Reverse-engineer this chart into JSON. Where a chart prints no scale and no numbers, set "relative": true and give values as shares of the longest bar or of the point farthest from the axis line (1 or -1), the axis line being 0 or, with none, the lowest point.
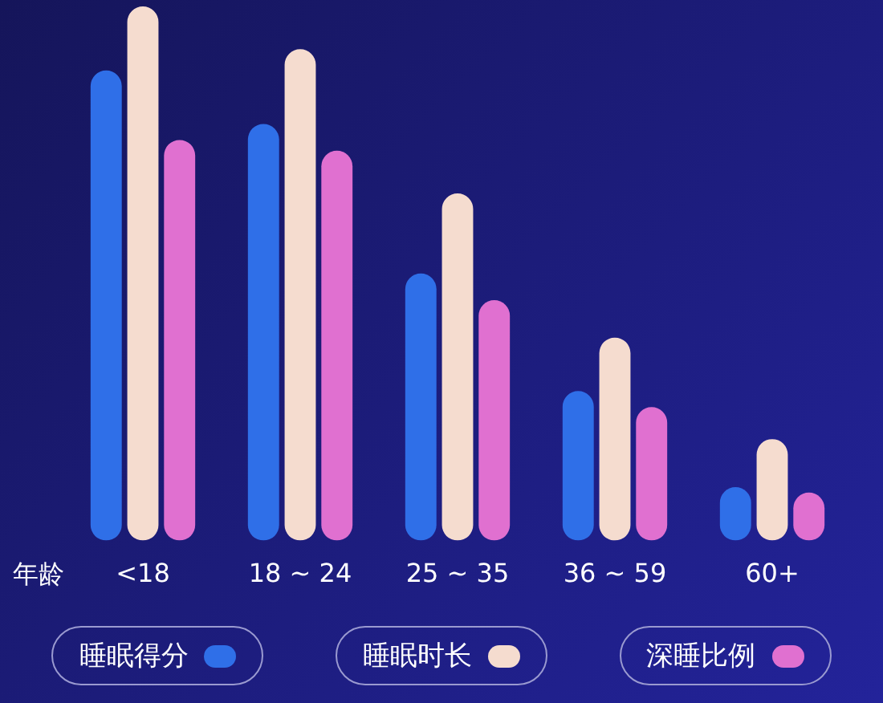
{
  "chart_data": {
    "type": "bar",
    "xlabel": "年龄",
    "categories": [
      "<18",
      "18 ~ 24",
      "25 ~ 35",
      "36 ~ 59",
      "60+"
    ],
    "relative": true,
    "legend": "bottom",
    "grid": false,
    "series": [
      {
        "name": "睡眠得分",
        "color": "#2f6fe8",
        "values": [
          0.88,
          0.78,
          0.5,
          0.28,
          0.1
        ]
      },
      {
        "name": "睡眠时长",
        "color": "#f5dccf",
        "values": [
          1,
          0.92,
          0.65,
          0.38,
          0.19
        ]
      },
      {
        "name": "深睡比例",
        "color": "#e070d0",
        "values": [
          0.75,
          0.73,
          0.45,
          0.25,
          0.09
        ]
      }
    ]
  }
}
